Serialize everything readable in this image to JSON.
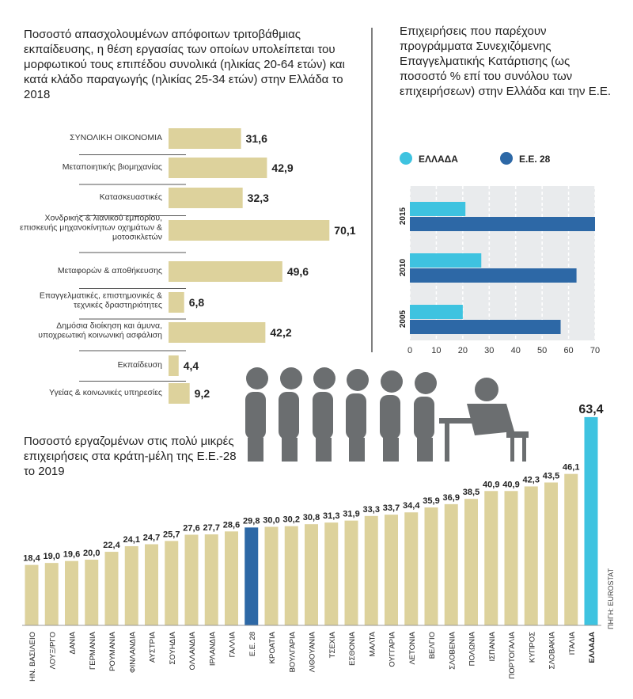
{
  "chart_data": [
    {
      "type": "bar",
      "orientation": "horizontal",
      "title": "Ποσοστό απασχολουμένων απόφοιτων τριτοβάθμιας εκπαίδευσης, η θέση εργασίας των οποίων υπολείπεται του μορφωτικού τους επιπέδου συνολικά (ηλικίας 20-64 ετών) και κατά κλάδο παραγωγής (ηλικίας 25-34 ετών) στην Ελλάδα το 2018",
      "categories": [
        "ΣΥΝΟΛΙΚΗ ΟΙΚΟΝΟΜΙΑ",
        "Μεταποιητικής βιομηχανίας",
        "Κατασκευαστικές",
        "Χονδρικής & λιανικού εμπορίου, επισκευής μηχανοκίνητων οχημάτων & μοτοσικλετών",
        "Μεταφορών & αποθήκευσης",
        "Επαγγελματικές, επιστημονικές & τεχνικές δραστηριότητες",
        "Δημόσια διοίκηση και άμυνα, υποχρεωτική κοινωνική ασφάλιση",
        "Εκπαίδευση",
        "Υγείας & κοινωνικές υπηρεσίες"
      ],
      "values": [
        31.6,
        42.9,
        32.3,
        70.1,
        49.6,
        6.8,
        42.2,
        4.4,
        9.2
      ],
      "value_labels": [
        "31,6",
        "42,9",
        "32,3",
        "70,1",
        "49,6",
        "6,8",
        "42,2",
        "4,4",
        "9,2"
      ],
      "color": "#ddd29c"
    },
    {
      "type": "grouped-hbar",
      "title": "Επιχειρήσεις που παρέχουν προγράμματα Συνεχιζόμενης Επαγγελματικής Κατάρτισης (ως ποσοστό % επί του συνόλου των επιχειρήσεων) στην Ελλάδα και την Ε.Ε.",
      "categories": [
        "2015",
        "2010",
        "2005"
      ],
      "series": [
        {
          "name": "ΕΛΛΑΔΑ",
          "color": "#3ec3e0",
          "values": [
            21,
            27,
            20
          ]
        },
        {
          "name": "Ε.Ε. 28",
          "color": "#2d68a6",
          "values": [
            70,
            63,
            57
          ]
        }
      ],
      "xlim": [
        0,
        70
      ],
      "xticks": [
        0,
        10,
        20,
        30,
        40,
        50,
        60,
        70
      ],
      "grid": true
    },
    {
      "type": "bar",
      "title": "Ποσοστό εργαζομένων στις πολύ μικρές επιχειρήσεις στα κράτη-μέλη της Ε.Ε.-28 το 2019",
      "categories": [
        "ΗΝ. ΒΑΣΙΛΕΙΟ",
        "ΛΟΥΞ/ΡΓΟ",
        "ΔΑΝΙΑ",
        "ΓΕΡΜΑΝΙΑ",
        "ΡΟΥΜΑΝΙΑ",
        "ΦΙΝΛΑΝΔΙΑ",
        "ΑΥΣΤΡΙΑ",
        "ΣΟΥΗΔΙΑ",
        "ΟΛΛΑΝΔΙΑ",
        "ΙΡΛΑΝΔΙΑ",
        "ΓΑΛΛΙΑ",
        "Ε.Ε. 28",
        "ΚΡΟΑΤΙΑ",
        "ΒΟΥΛΓΑΡΙΑ",
        "ΛΙΘΟΥΑΝΙΑ",
        "ΤΣΕΧΙΑ",
        "ΕΣΘΟΝΙΑ",
        "ΜΑΛΤΑ",
        "ΟΥΓΓΑΡΙΑ",
        "ΛΕΤΟΝΙΑ",
        "ΒΕΛΓΙΟ",
        "ΣΛΟΒΕΝΙΑ",
        "ΠΟΛΩΝΙΑ",
        "ΙΣΠΑΝΙΑ",
        "ΠΟΡΤΟΓΑΛΙΑ",
        "ΚΥΠΡΟΣ",
        "ΣΛΟΒΑΚΙΑ",
        "ΙΤΑΛΙΑ",
        "ΕΛΛΑΔΑ"
      ],
      "values": [
        18.4,
        19.0,
        19.6,
        20.0,
        22.4,
        24.1,
        24.7,
        25.7,
        27.6,
        27.7,
        28.6,
        29.8,
        30.0,
        30.2,
        30.8,
        31.3,
        31.9,
        33.3,
        33.7,
        34.4,
        35.9,
        36.9,
        38.5,
        40.9,
        40.9,
        42.3,
        43.5,
        46.1,
        63.4
      ],
      "value_labels": [
        "18,4",
        "19,0",
        "19,6",
        "20,0",
        "22,4",
        "24,1",
        "24,7",
        "25,7",
        "27,6",
        "27,7",
        "28,6",
        "29,8",
        "30,0",
        "30,2",
        "30,8",
        "31,3",
        "31,9",
        "33,3",
        "33,7",
        "34,4",
        "35,9",
        "36,9",
        "38,5",
        "40,9",
        "40,9",
        "42,3",
        "43,5",
        "46,1",
        "63,4"
      ],
      "colors": [
        "#ddd29c",
        "#ddd29c",
        "#ddd29c",
        "#ddd29c",
        "#ddd29c",
        "#ddd29c",
        "#ddd29c",
        "#ddd29c",
        "#ddd29c",
        "#ddd29c",
        "#ddd29c",
        "#2d68a6",
        "#ddd29c",
        "#ddd29c",
        "#ddd29c",
        "#ddd29c",
        "#ddd29c",
        "#ddd29c",
        "#ddd29c",
        "#ddd29c",
        "#ddd29c",
        "#ddd29c",
        "#ddd29c",
        "#ddd29c",
        "#ddd29c",
        "#ddd29c",
        "#ddd29c",
        "#ddd29c",
        "#3ec3e0"
      ],
      "source": "ΠΗΓΗ: EUROSTAT"
    }
  ]
}
